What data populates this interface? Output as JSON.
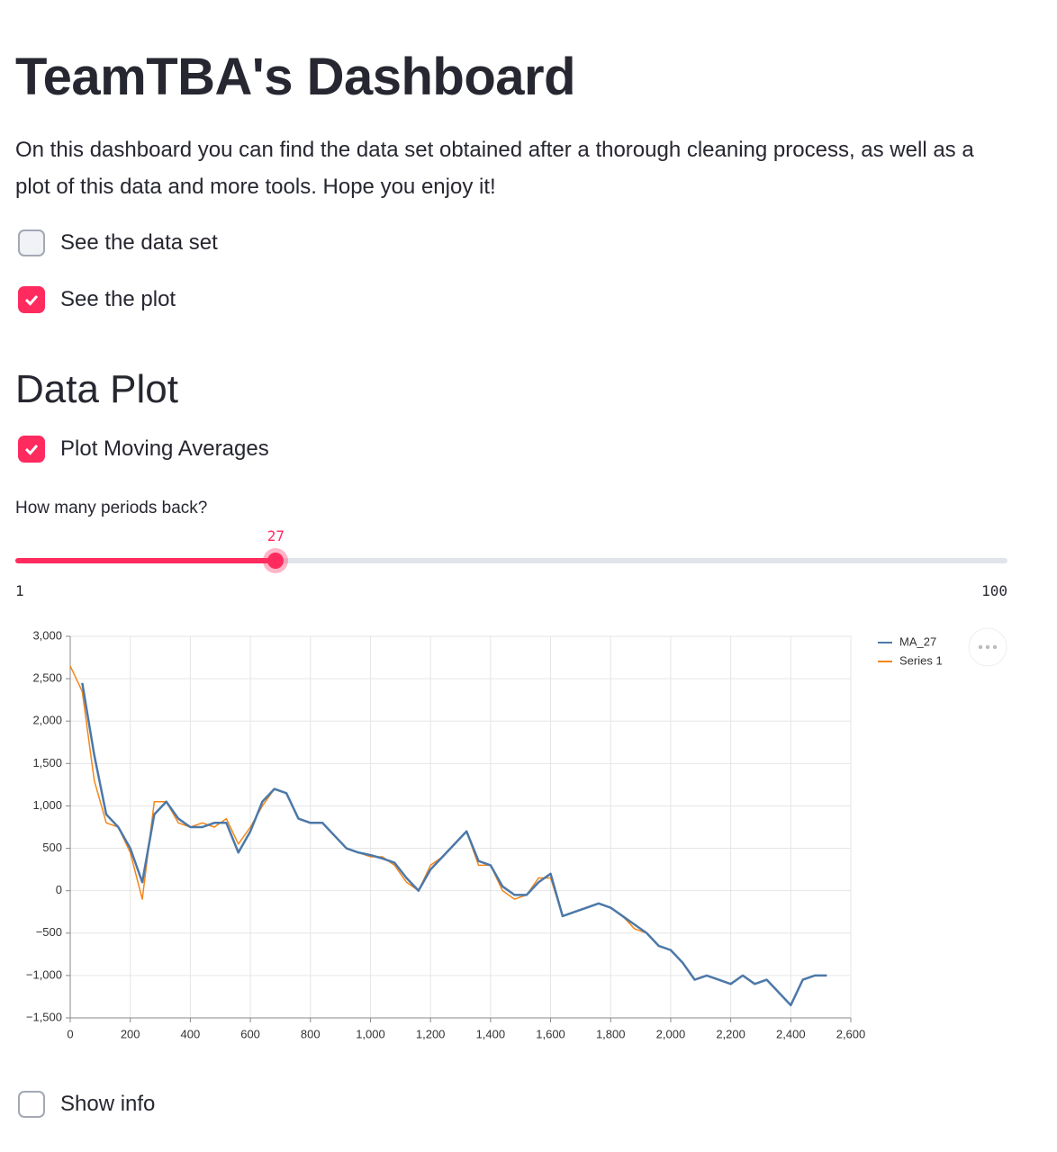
{
  "header": {
    "title": "TeamTBA's Dashboard",
    "description": "On this dashboard you can find the data set obtained after a thorough cleaning process, as well as a plot of this data and more tools. Hope you enjoy it!"
  },
  "checkboxes": [
    {
      "label": "See the data set",
      "checked": false
    },
    {
      "label": "See the plot",
      "checked": true
    }
  ],
  "section": {
    "title": "Data Plot"
  },
  "ma_checkbox": {
    "label": "Plot Moving Averages",
    "checked": true
  },
  "slider": {
    "label": "How many periods back?",
    "value": 27,
    "min": 1,
    "max": 100
  },
  "chart_data": {
    "type": "line",
    "x": [
      0,
      40,
      80,
      120,
      160,
      200,
      240,
      280,
      320,
      360,
      400,
      440,
      480,
      520,
      560,
      600,
      640,
      680,
      720,
      760,
      800,
      840,
      880,
      920,
      960,
      1000,
      1040,
      1080,
      1120,
      1160,
      1200,
      1240,
      1280,
      1320,
      1360,
      1400,
      1440,
      1480,
      1520,
      1560,
      1600,
      1640,
      1680,
      1720,
      1760,
      1800,
      1840,
      1880,
      1920,
      1960,
      2000,
      2040,
      2080,
      2120,
      2160,
      2200,
      2240,
      2280,
      2320,
      2360,
      2400,
      2440,
      2480,
      2520
    ],
    "series": [
      {
        "name": "MA_27",
        "color": "#4c78a8",
        "values": [
          null,
          2450,
          1600,
          900,
          750,
          500,
          100,
          900,
          1050,
          850,
          750,
          750,
          800,
          800,
          450,
          700,
          1050,
          1200,
          1150,
          850,
          800,
          800,
          650,
          500,
          450,
          420,
          380,
          330,
          150,
          0,
          250,
          400,
          550,
          700,
          350,
          300,
          50,
          -50,
          -50,
          100,
          200,
          -300,
          -250,
          -200,
          -150,
          -200,
          -300,
          -400,
          -500,
          -650,
          -700,
          -850,
          -1050,
          -1000,
          -1050,
          -1100,
          -1000,
          -1100,
          -1050,
          -1200,
          -1350,
          -1050,
          -1000,
          -1000
        ]
      },
      {
        "name": "Series 1",
        "color": "#f58518",
        "values": [
          2650,
          2350,
          1300,
          800,
          750,
          450,
          -100,
          1050,
          1050,
          800,
          750,
          800,
          750,
          850,
          550,
          750,
          1000,
          1200,
          1150,
          850,
          800,
          800,
          650,
          500,
          450,
          400,
          400,
          300,
          100,
          0,
          300,
          400,
          550,
          700,
          300,
          300,
          0,
          -100,
          -50,
          150,
          150,
          -300,
          -250,
          -200,
          -150,
          -200,
          -300,
          -450,
          -500,
          -650,
          -700,
          -850,
          -1050,
          -1000,
          -1050,
          -1100,
          -1000,
          -1100,
          -1050,
          -1200,
          -1350,
          -1050,
          -1000,
          -1000
        ]
      }
    ],
    "xlim": [
      0,
      2600
    ],
    "xticks": [
      0,
      200,
      400,
      600,
      800,
      {
        "value": 1000,
        "label": "1,000"
      },
      {
        "value": 1200,
        "label": "1,200"
      },
      {
        "value": 1400,
        "label": "1,400"
      },
      {
        "value": 1600,
        "label": "1,600"
      },
      {
        "value": 1800,
        "label": "1,800"
      },
      {
        "value": 2000,
        "label": "2,000"
      },
      {
        "value": 2200,
        "label": "2,200"
      },
      {
        "value": 2400,
        "label": "2,400"
      },
      {
        "value": 2600,
        "label": "2,600"
      }
    ],
    "ylim": [
      -1500,
      3000
    ],
    "yticks": [
      {
        "value": -1500,
        "label": "−1,500"
      },
      {
        "value": -1000,
        "label": "−1,000"
      },
      {
        "value": -500,
        "label": "−500"
      },
      0,
      500,
      {
        "value": 1000,
        "label": "1,000"
      },
      {
        "value": 1500,
        "label": "1,500"
      },
      {
        "value": 2000,
        "label": "2,000"
      },
      {
        "value": 2500,
        "label": "2,500"
      },
      {
        "value": 3000,
        "label": "3,000"
      }
    ],
    "grid": true
  },
  "footer_checkbox": {
    "label": "Show info",
    "checked": false
  }
}
